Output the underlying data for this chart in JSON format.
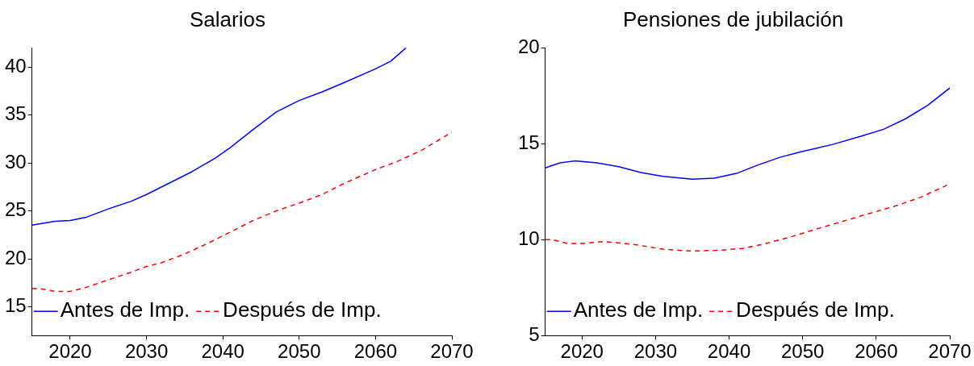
{
  "chart_data": [
    {
      "type": "line",
      "title": "Salarios",
      "xlim": [
        2015,
        2070
      ],
      "xticks": [
        2020,
        2030,
        2040,
        2050,
        2060,
        2070
      ],
      "ylim": [
        12,
        42
      ],
      "yticks": [
        15,
        20,
        25,
        30,
        35,
        40
      ],
      "grid": false,
      "legend": "bottom",
      "marker": "none",
      "series": [
        {
          "name": "Antes de Imp.",
          "color": "#0000ff",
          "line_style": "solid",
          "x": [
            2015,
            2018,
            2020,
            2022,
            2025,
            2028,
            2030,
            2033,
            2036,
            2039,
            2041,
            2044,
            2047,
            2050,
            2053,
            2056,
            2060,
            2062,
            2064
          ],
          "values": [
            23.5,
            23.9,
            24.0,
            24.3,
            25.2,
            26.0,
            26.7,
            27.9,
            29.1,
            30.5,
            31.6,
            33.5,
            35.3,
            36.5,
            37.4,
            38.4,
            39.8,
            40.6,
            42.0
          ]
        },
        {
          "name": "Después de Imp.",
          "color": "#ff0000",
          "line_style": "dashed",
          "x": [
            2015,
            2016,
            2018,
            2020,
            2022,
            2025,
            2028,
            2030,
            2032,
            2035,
            2038,
            2041,
            2044,
            2047,
            2050,
            2053,
            2056,
            2060,
            2063,
            2066,
            2070
          ],
          "values": [
            16.9,
            16.9,
            16.6,
            16.6,
            17.0,
            17.8,
            18.6,
            19.2,
            19.6,
            20.5,
            21.6,
            22.8,
            24.0,
            25.0,
            25.8,
            26.7,
            27.9,
            29.3,
            30.2,
            31.3,
            33.2
          ]
        }
      ]
    },
    {
      "type": "line",
      "title": "Pensiones de jubilación",
      "xlim": [
        2015,
        2070
      ],
      "xticks": [
        2020,
        2030,
        2040,
        2050,
        2060,
        2070
      ],
      "ylim": [
        5,
        20
      ],
      "yticks": [
        5,
        10,
        15,
        20
      ],
      "grid": false,
      "legend": "bottom",
      "marker": "none",
      "series": [
        {
          "name": "Antes de Imp.",
          "color": "#0000ff",
          "line_style": "solid",
          "x": [
            2015,
            2017,
            2019,
            2022,
            2025,
            2028,
            2031,
            2035,
            2038,
            2041,
            2044,
            2047,
            2050,
            2054,
            2058,
            2061,
            2064,
            2067,
            2070
          ],
          "values": [
            13.74,
            14.0,
            14.1,
            14.0,
            13.8,
            13.5,
            13.3,
            13.15,
            13.2,
            13.45,
            13.9,
            14.3,
            14.6,
            14.95,
            15.4,
            15.75,
            16.3,
            17.0,
            17.9
          ]
        },
        {
          "name": "Después de Imp.",
          "color": "#ff0000",
          "line_style": "dashed",
          "x": [
            2015,
            2016,
            2018,
            2020,
            2023,
            2027,
            2031,
            2035,
            2039,
            2042,
            2045,
            2048,
            2051,
            2055,
            2059,
            2063,
            2066,
            2070
          ],
          "values": [
            10.0,
            10.0,
            9.8,
            9.8,
            9.9,
            9.75,
            9.5,
            9.4,
            9.45,
            9.55,
            9.8,
            10.1,
            10.45,
            10.9,
            11.35,
            11.8,
            12.2,
            12.9
          ]
        }
      ]
    }
  ]
}
